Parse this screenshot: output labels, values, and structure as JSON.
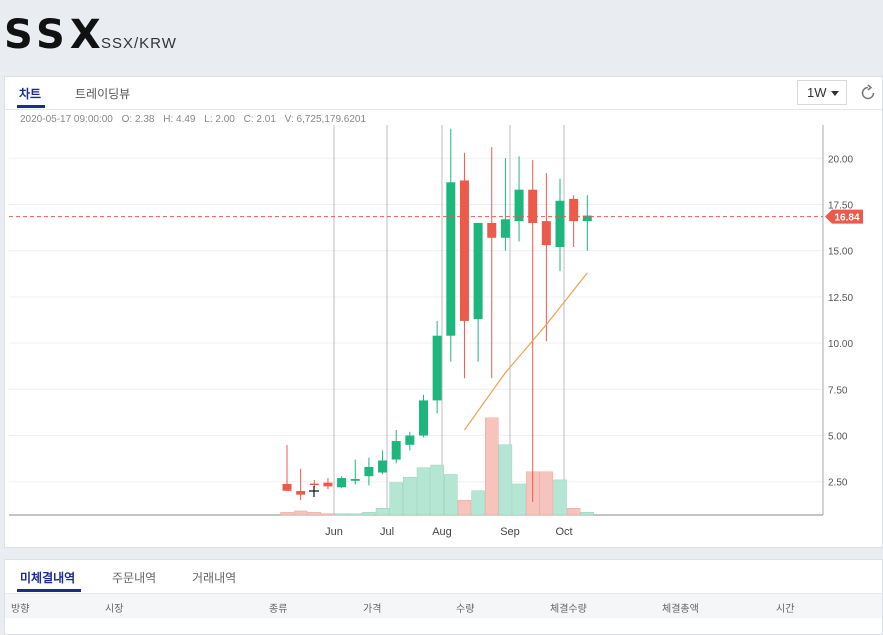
{
  "header": {
    "symbol": "SSX",
    "pair": "SSX/KRW"
  },
  "chart_tabs": [
    {
      "label": "차트"
    },
    {
      "label": "트레이딩뷰"
    }
  ],
  "interval": "1W",
  "ohlc": {
    "date": "2020-05-17 09:00:00",
    "open": "O: 2.38",
    "high": "H: 4.49",
    "low": "L: 2.00",
    "close": "C: 2.01",
    "volume": "V: 6,725,179.6201"
  },
  "current_price_label": "16.84",
  "colors": {
    "up": "#1db67d",
    "down": "#ec5a4b",
    "volume_up": "#b5e6d3",
    "volume_down": "#f6c3bd",
    "ma": "#f0a050",
    "accent": "#1b2b8f"
  },
  "chart_data": {
    "type": "candlestick",
    "y_ticks": [
      "20.00",
      "17.50",
      "15.00",
      "12.50",
      "10.00",
      "7.50",
      "5.00",
      "2.50"
    ],
    "x_ticks": [
      "Jun",
      "Jul",
      "Aug",
      "Sep",
      "Oct"
    ],
    "ylim": [
      0.7,
      21.8
    ],
    "current_price": 16.84,
    "candles": [
      {
        "open": 2.38,
        "high": 4.49,
        "low": 2.0,
        "close": 2.01,
        "volume": 0.02
      },
      {
        "open": 2.0,
        "high": 3.2,
        "low": 1.5,
        "close": 1.8,
        "volume": 0.03
      },
      {
        "open": 2.4,
        "high": 2.6,
        "low": 2.2,
        "close": 2.35,
        "volume": 0.02
      },
      {
        "open": 2.45,
        "high": 2.7,
        "low": 2.1,
        "close": 2.25,
        "volume": 0.01
      },
      {
        "open": 2.2,
        "high": 2.8,
        "low": 2.15,
        "close": 2.7,
        "volume": 0.01
      },
      {
        "open": 2.55,
        "high": 3.7,
        "low": 2.35,
        "close": 2.65,
        "volume": 0.01
      },
      {
        "open": 2.8,
        "high": 3.8,
        "low": 2.3,
        "close": 3.3,
        "volume": 0.02
      },
      {
        "open": 3.0,
        "high": 4.2,
        "low": 2.9,
        "close": 3.65,
        "volume": 0.05
      },
      {
        "open": 3.7,
        "high": 5.3,
        "low": 3.5,
        "close": 4.7,
        "volume": 0.24
      },
      {
        "open": 4.5,
        "high": 5.2,
        "low": 4.2,
        "close": 5.0,
        "volume": 0.28
      },
      {
        "open": 5.0,
        "high": 7.2,
        "low": 4.9,
        "close": 6.9,
        "volume": 0.35
      },
      {
        "open": 6.9,
        "high": 11.2,
        "low": 6.2,
        "close": 10.4,
        "volume": 0.37
      },
      {
        "open": 10.4,
        "high": 21.6,
        "low": 9.0,
        "close": 18.7,
        "volume": 0.3
      },
      {
        "open": 18.8,
        "high": 20.3,
        "low": 8.1,
        "close": 11.2,
        "volume": 0.11
      },
      {
        "open": 11.3,
        "high": 16.5,
        "low": 9.0,
        "close": 16.5,
        "volume": 0.18
      },
      {
        "open": 16.5,
        "high": 20.6,
        "low": 8.1,
        "close": 15.7,
        "volume": 0.72
      },
      {
        "open": 15.7,
        "high": 20.0,
        "low": 15.0,
        "close": 16.7,
        "volume": 0.52
      },
      {
        "open": 16.6,
        "high": 20.1,
        "low": 15.5,
        "close": 18.3,
        "volume": 0.23
      },
      {
        "open": 18.3,
        "high": 19.9,
        "low": 1.4,
        "close": 16.5,
        "volume": 0.32
      },
      {
        "open": 16.6,
        "high": 19.2,
        "low": 10.1,
        "close": 15.3,
        "volume": 0.32
      },
      {
        "open": 15.2,
        "high": 18.9,
        "low": 13.9,
        "close": 17.7,
        "volume": 0.26
      },
      {
        "open": 17.8,
        "high": 18.0,
        "low": 15.2,
        "close": 16.6,
        "volume": 0.05
      },
      {
        "open": 16.6,
        "high": 18.0,
        "low": 15.0,
        "close": 16.9,
        "volume": 0.02
      }
    ],
    "moving_average": [
      {
        "index": 13,
        "value": 5.3
      },
      {
        "index": 16,
        "value": 8.4
      },
      {
        "index": 19,
        "value": 11.0
      },
      {
        "index": 22,
        "value": 13.8
      }
    ]
  },
  "orders": {
    "tabs": [
      {
        "label": "미체결내역"
      },
      {
        "label": "주문내역"
      },
      {
        "label": "거래내역"
      }
    ],
    "columns": [
      "방향",
      "시장",
      "종류",
      "가격",
      "수량",
      "체결수량",
      "체결총액",
      "시간"
    ]
  }
}
